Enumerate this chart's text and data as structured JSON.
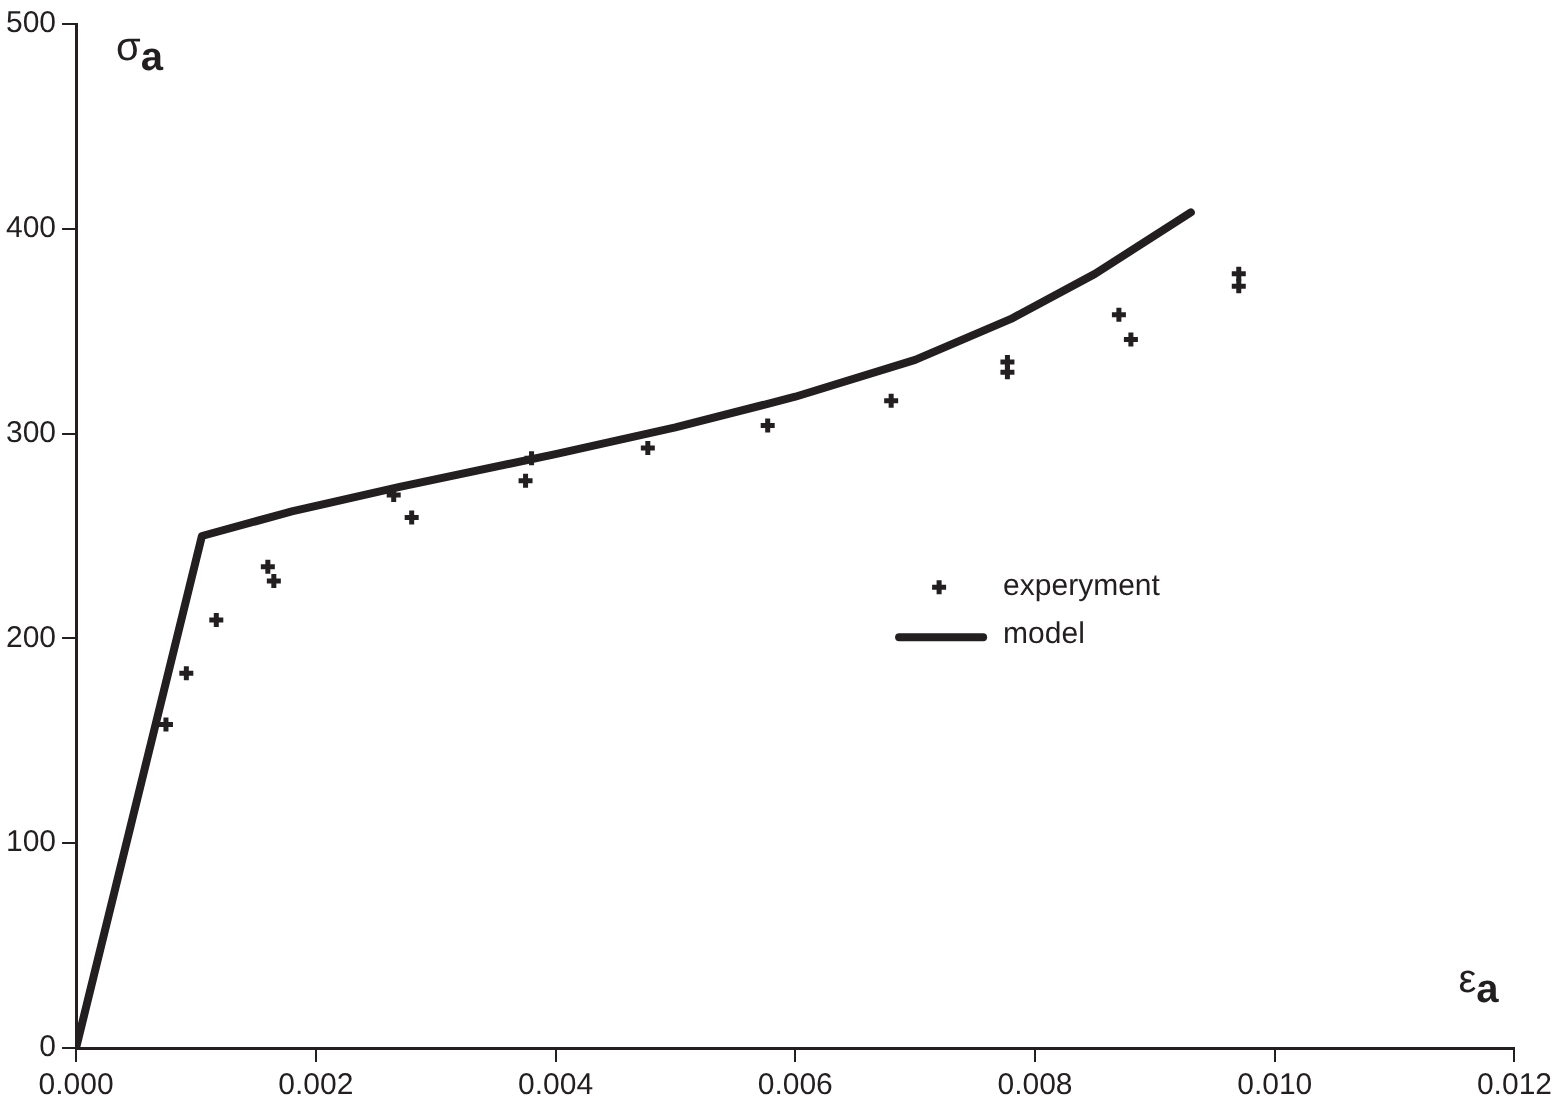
{
  "chart_data": {
    "type": "scatter",
    "xlabel": "ε$_{a}$",
    "ylabel": "σ$_{a}$",
    "xlim": [
      0,
      0.012
    ],
    "xticks": [
      {
        "value": 0,
        "label": "0.000"
      },
      {
        "value": 0.002,
        "label": "0.002"
      },
      {
        "value": 0.004,
        "label": "0.004"
      },
      {
        "value": 0.006,
        "label": "0.006"
      },
      {
        "value": 0.008,
        "label": "0.008"
      },
      {
        "value": 0.01,
        "label": "0.010"
      },
      {
        "value": 0.012,
        "label": "0.012"
      }
    ],
    "ylim": [
      0,
      500
    ],
    "yticks": [
      0,
      100,
      200,
      300,
      400,
      500
    ],
    "grid": false,
    "legend": "right",
    "series": [
      {
        "name": "experyment",
        "type": "scatter",
        "marker": "cross",
        "color": "#231f20",
        "x": [
          0.00075,
          0.00092,
          0.00117,
          0.0016,
          0.00165,
          0.00265,
          0.0028,
          0.00375,
          0.0038,
          0.00477,
          0.00577,
          0.0068,
          0.00777,
          0.00777,
          0.0087,
          0.0088,
          0.0097,
          0.0097
        ],
        "values": [
          158,
          183,
          209,
          235,
          228,
          270,
          259,
          277,
          288,
          293,
          304,
          316,
          335,
          330,
          358,
          346,
          378,
          372
        ]
      },
      {
        "name": "model",
        "type": "line",
        "marker": "none",
        "color": "#231f20",
        "x": [
          0,
          0.00105,
          0.0018,
          0.0027,
          0.004,
          0.005,
          0.006,
          0.007,
          0.0078,
          0.0085,
          0.0093
        ],
        "values": [
          0,
          250,
          262,
          274,
          290,
          303,
          318,
          336,
          356,
          378,
          408
        ]
      }
    ]
  }
}
